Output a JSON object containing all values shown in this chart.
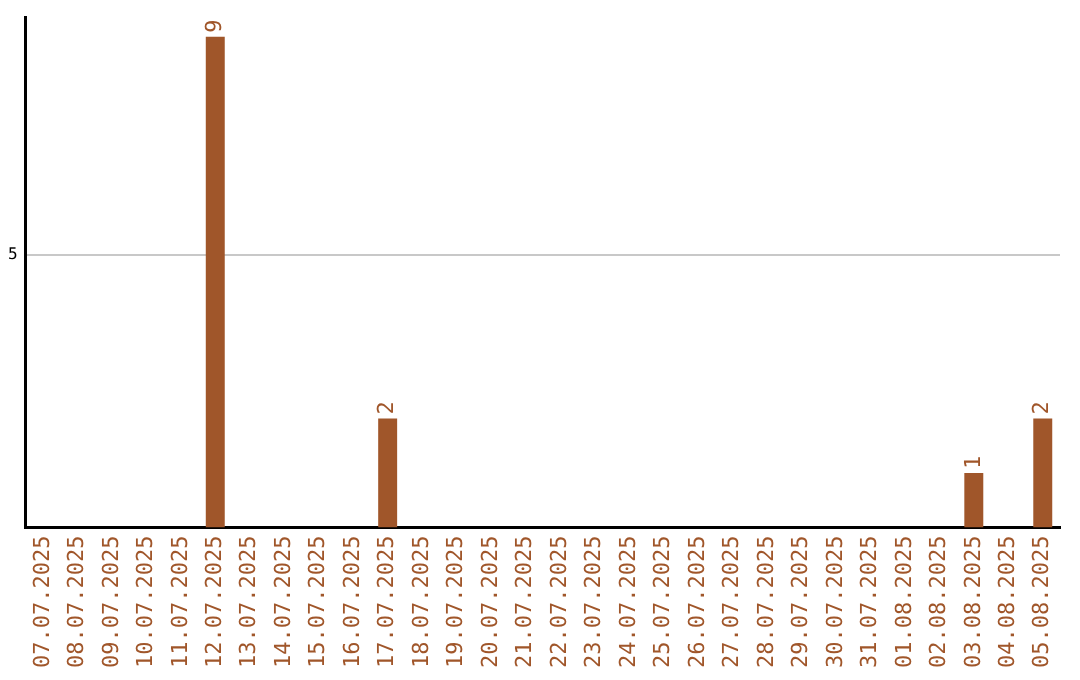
{
  "chart_data": {
    "type": "bar",
    "categories": [
      "07.07.2025",
      "08.07.2025",
      "09.07.2025",
      "10.07.2025",
      "11.07.2025",
      "12.07.2025",
      "13.07.2025",
      "14.07.2025",
      "15.07.2025",
      "16.07.2025",
      "17.07.2025",
      "18.07.2025",
      "19.07.2025",
      "20.07.2025",
      "21.07.2025",
      "22.07.2025",
      "23.07.2025",
      "24.07.2025",
      "25.07.2025",
      "26.07.2025",
      "27.07.2025",
      "28.07.2025",
      "29.07.2025",
      "30.07.2025",
      "31.07.2025",
      "01.08.2025",
      "02.08.2025",
      "03.08.2025",
      "04.08.2025",
      "05.08.2025"
    ],
    "values": [
      0,
      0,
      0,
      0,
      0,
      9,
      0,
      0,
      0,
      0,
      2,
      0,
      0,
      0,
      0,
      0,
      0,
      0,
      0,
      0,
      0,
      0,
      0,
      0,
      0,
      0,
      0,
      1,
      0,
      2
    ],
    "value_labels": [
      null,
      null,
      null,
      null,
      null,
      "9",
      null,
      null,
      null,
      null,
      "2",
      null,
      null,
      null,
      null,
      null,
      null,
      null,
      null,
      null,
      null,
      null,
      null,
      null,
      null,
      null,
      null,
      "1",
      null,
      "2"
    ],
    "color": "#a0562a",
    "ylim": [
      0,
      9.35
    ],
    "yticks": [
      5
    ],
    "grid": "y",
    "legend": false
  }
}
